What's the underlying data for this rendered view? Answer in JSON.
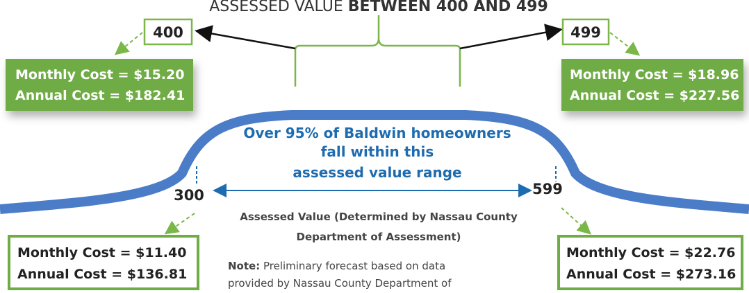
{
  "header": {
    "title_plain": "ASSESSED VALUE ",
    "title_bold": "BETWEEN 400 AND 499"
  },
  "markers": {
    "low_inner": "400",
    "high_inner": "499",
    "low_outer": "300",
    "high_outer": "599"
  },
  "boxes": [
    {
      "monthly": "Monthly Cost = $15.20",
      "annual": "Annual Cost = $182.41"
    },
    {
      "monthly": "Monthly Cost = $18.96",
      "annual": "Annual Cost = $227.56"
    },
    {
      "monthly": "Monthly Cost = $11.40",
      "annual": "Annual Cost = $136.81"
    },
    {
      "monthly": "Monthly Cost = $22.76",
      "annual": "Annual Cost = $273.16"
    }
  ],
  "center_text": [
    "Over 95% of Baldwin homeowners",
    "fall within this",
    "assessed value range"
  ],
  "axis_label": [
    "Assessed Value (Determined by Nassau County",
    "Department of Assessment)"
  ],
  "note": {
    "lead": "Note:",
    "lines": [
      " Preliminary forecast based on data",
      "provided by Nassau County Department of"
    ]
  }
}
